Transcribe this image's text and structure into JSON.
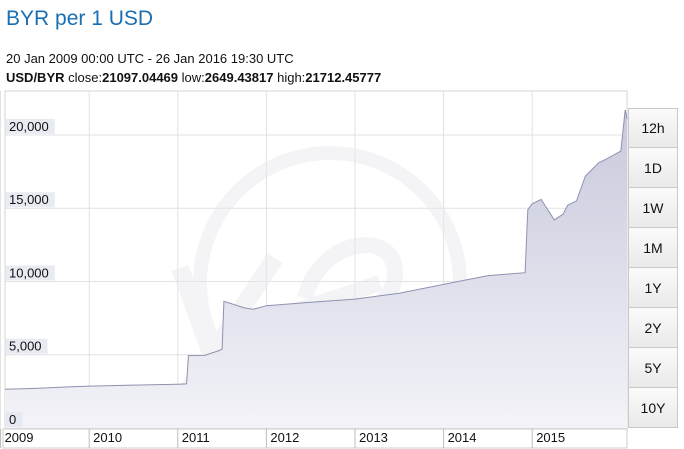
{
  "header": {
    "title": "BYR per 1 USD",
    "date_range": "20 Jan 2009 00:00 UTC - 26 Jan 2016 19:30 UTC",
    "pair": "USD/BYR",
    "close_label": "close:",
    "close": "21097.04469",
    "low_label": "low:",
    "low": "2649.43817",
    "high_label": "high:",
    "high": "21712.45777"
  },
  "range_buttons": [
    "12h",
    "1D",
    "1W",
    "1M",
    "1Y",
    "2Y",
    "5Y",
    "10Y"
  ],
  "colors": {
    "title": "#1a6fb3",
    "line": "#8f92b0",
    "fill_top": "#c7c9dc",
    "fill_bottom": "#f3f3f8",
    "grid": "#e2e2e2",
    "tick_label_bg": "#e4e6f0"
  },
  "chart_data": {
    "type": "area",
    "title": "BYR per 1 USD",
    "xlabel": "",
    "ylabel": "",
    "grid": true,
    "x_ticks": [
      "2009",
      "2010",
      "2011",
      "2012",
      "2013",
      "2014",
      "2015"
    ],
    "y_ticks": [
      "0",
      "5,000",
      "10,000",
      "15,000",
      "20,000"
    ],
    "ylim": [
      0,
      23000
    ],
    "x_range": [
      2009.05,
      2016.07
    ],
    "series": [
      {
        "x": [
          2009.05,
          2009.4,
          2009.8,
          2010.0,
          2010.5,
          2011.0,
          2011.1,
          2011.12,
          2011.3,
          2011.45,
          2011.5,
          2011.52,
          2011.6,
          2011.75,
          2011.85,
          2012.0,
          2012.5,
          2013.0,
          2013.5,
          2014.0,
          2014.5,
          2014.92,
          2014.95,
          2015.0,
          2015.1,
          2015.25,
          2015.35,
          2015.4,
          2015.5,
          2015.6,
          2015.75,
          2015.85,
          2016.0,
          2016.05,
          2016.07
        ],
        "y": [
          2650,
          2700,
          2820,
          2860,
          2930,
          2990,
          3010,
          4940,
          4950,
          5250,
          5380,
          8650,
          8500,
          8200,
          8100,
          8350,
          8580,
          8800,
          9200,
          9800,
          10400,
          10600,
          14900,
          15300,
          15600,
          14200,
          14600,
          15200,
          15500,
          17200,
          18100,
          18400,
          18900,
          21710,
          21097
        ]
      }
    ]
  }
}
